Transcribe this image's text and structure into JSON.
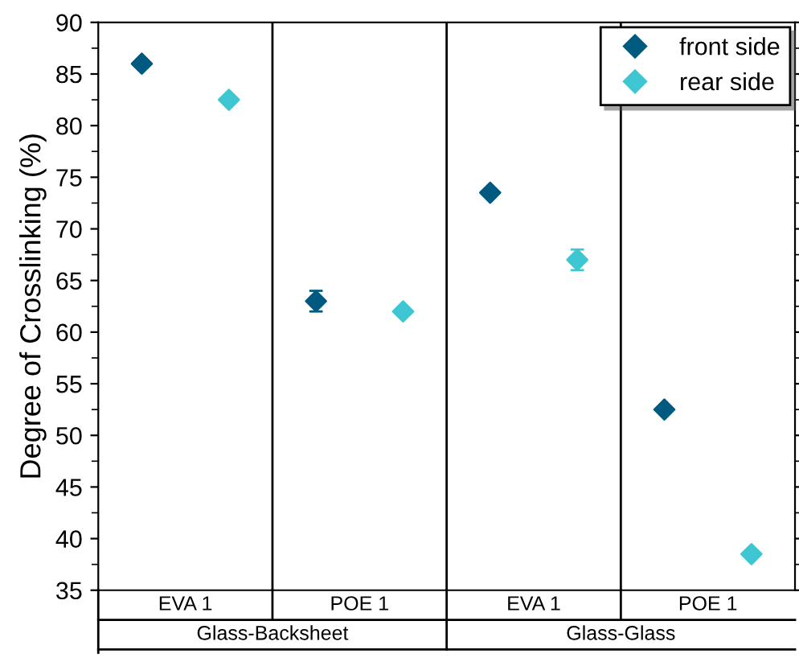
{
  "chart_data": {
    "type": "scatter",
    "ylabel": "Degree of Crosslinking (%)",
    "categories": [
      "EVA 1",
      "POE 1",
      "EVA 1",
      "POE 1"
    ],
    "annotations": [
      "Glass-Backsheet",
      "Glass-Glass"
    ],
    "series": [
      {
        "name": "front side",
        "color": "#005a80",
        "values": [
          86,
          63,
          73.5,
          52.5
        ],
        "errors": [
          null,
          1,
          null,
          null
        ]
      },
      {
        "name": "rear side",
        "color": "#3ec6d2",
        "values": [
          82.5,
          62,
          67,
          38.5
        ],
        "errors": [
          null,
          null,
          1,
          null
        ]
      }
    ],
    "ylim": [
      35,
      90
    ],
    "yticks": [
      35,
      40,
      45,
      50,
      55,
      60,
      65,
      70,
      75,
      80,
      85,
      90
    ],
    "marker": "diamond",
    "legend": "top right",
    "grid": false
  }
}
